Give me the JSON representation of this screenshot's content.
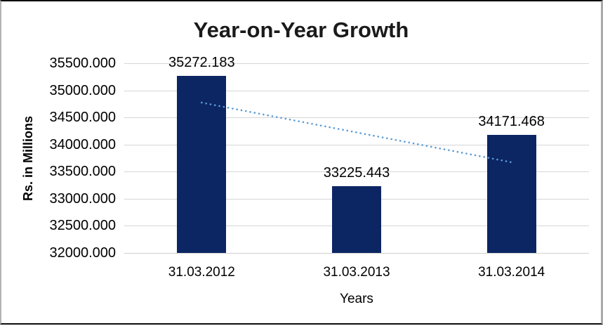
{
  "chart_data": {
    "type": "bar",
    "title": "Year-on-Year Growth",
    "xlabel": "Years",
    "ylabel": "Rs. in Millions",
    "categories": [
      "31.03.2012",
      "31.03.2013",
      "31.03.2014"
    ],
    "values": [
      35272.183,
      33225.443,
      34171.468
    ],
    "data_labels": [
      "35272.183",
      "33225.443",
      "34171.468"
    ],
    "ylim": [
      32000,
      35500
    ],
    "ytick_interval": 500,
    "ytick_labels": [
      "35500.000",
      "35000.000",
      "34500.000",
      "34000.000",
      "33500.000",
      "33000.000",
      "32500.000",
      "32000.000"
    ],
    "grid": true,
    "legend": "none",
    "trendline": {
      "type": "linear",
      "style": "dotted"
    },
    "colors": {
      "bar": "#0c2563",
      "trendline": "#5b9bd5",
      "gridline": "#d6d6d6",
      "axis_line": "#cfcfcf",
      "title_text": "#1a1a1a",
      "label_text": "#000000"
    }
  }
}
